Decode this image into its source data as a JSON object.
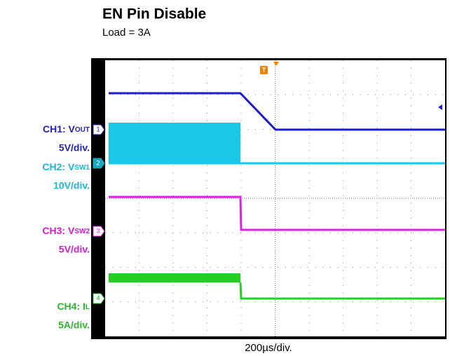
{
  "title": "EN Pin Disable",
  "subtitle": "Load = 3A",
  "channels": [
    {
      "name": "CH1: V",
      "sub": "OUT",
      "scale": "5V/div.",
      "marker": "1"
    },
    {
      "name": "CH2: V",
      "sub": "SW1",
      "scale": "10V/div.",
      "marker": "2"
    },
    {
      "name": "CH3: V",
      "sub": "SW2",
      "scale": "5V/div.",
      "marker": "3"
    },
    {
      "name": "CH4: I",
      "sub": "L",
      "scale": "5A/div.",
      "marker": "4"
    }
  ],
  "trigger": "T",
  "timebase": "200µs/div."
}
